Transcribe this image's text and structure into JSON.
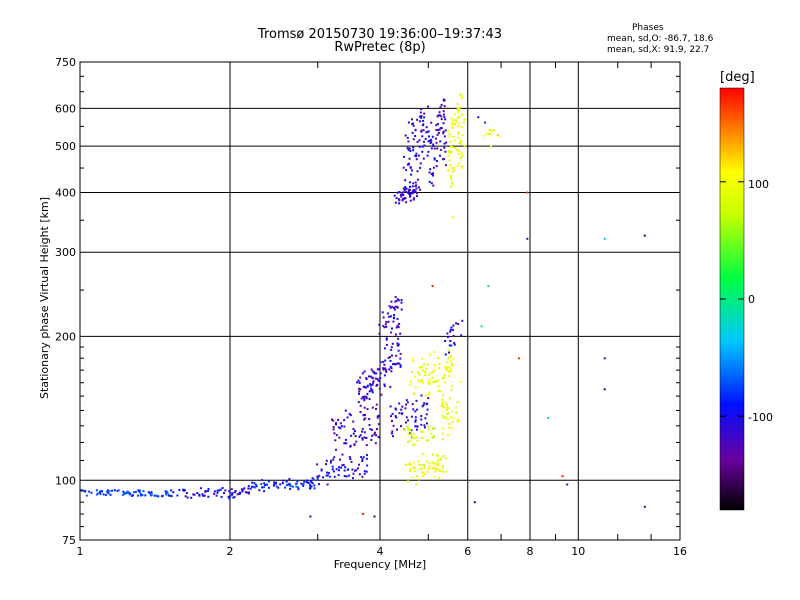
{
  "title_line1": "Tromsø 20150730 19:36:00–19:37:43",
  "title_line2": "RwPretec (8p)",
  "phases": {
    "heading": "Phases",
    "line_o": "mean, sd,O: -86.7, 18.6",
    "line_x": "mean, sd,X:  91.9, 22.7"
  },
  "colorbar": {
    "label": "[deg]",
    "ticks": [
      "100",
      "0",
      "-100"
    ],
    "range": [
      -180,
      180
    ]
  },
  "chart_data": {
    "type": "scatter",
    "xlabel": "Frequency [MHz]",
    "ylabel": "Stationary phase Virtual Height [km]",
    "x_scale": "log",
    "y_scale": "log",
    "xlim": [
      1,
      16
    ],
    "ylim": [
      75,
      750
    ],
    "x_ticks": [
      1,
      2,
      4,
      6,
      8,
      10,
      16
    ],
    "x_tick_labels": [
      "1",
      "2",
      "4",
      "6",
      "8",
      "10",
      "16"
    ],
    "x_minor_ticks": [
      3,
      5,
      7,
      9,
      12,
      14
    ],
    "y_ticks": [
      75,
      100,
      200,
      300,
      400,
      500,
      600,
      750
    ],
    "y_tick_labels": [
      "75",
      "100",
      "200",
      "300",
      "400",
      "500",
      "600",
      "750"
    ],
    "grid": true,
    "colormap": "rainbow-phase",
    "segments": [
      {
        "x1": 1.0,
        "y1": 94,
        "x2": 1.5,
        "y2": 94,
        "phase": -75,
        "n": 70,
        "spread": 1.5
      },
      {
        "x1": 1.5,
        "y1": 93,
        "x2": 2.2,
        "y2": 95,
        "phase": -100,
        "n": 70,
        "spread": 2
      },
      {
        "x1": 2.2,
        "y1": 96,
        "x2": 3.0,
        "y2": 100,
        "phase": -85,
        "n": 70,
        "spread": 2
      },
      {
        "x1": 3.0,
        "y1": 100,
        "x2": 3.8,
        "y2": 112,
        "phase": -100,
        "n": 60,
        "spread": 3
      },
      {
        "x1": 3.2,
        "y1": 112,
        "x2": 4.0,
        "y2": 145,
        "phase": -115,
        "n": 80,
        "spread": 4
      },
      {
        "x1": 3.6,
        "y1": 145,
        "x2": 4.0,
        "y2": 175,
        "phase": -110,
        "n": 60,
        "spread": 5
      },
      {
        "x1": 4.0,
        "y1": 150,
        "x2": 4.4,
        "y2": 255,
        "phase": -110,
        "n": 90,
        "spread": 8
      },
      {
        "x1": 4.2,
        "y1": 120,
        "x2": 5.0,
        "y2": 150,
        "phase": -110,
        "n": 60,
        "spread": 4
      },
      {
        "x1": 4.5,
        "y1": 100,
        "x2": 5.4,
        "y2": 115,
        "phase": 95,
        "n": 60,
        "spread": 4
      },
      {
        "x1": 4.4,
        "y1": 120,
        "x2": 5.2,
        "y2": 130,
        "phase": 80,
        "n": 30,
        "spread": 4
      },
      {
        "x1": 4.6,
        "y1": 150,
        "x2": 5.6,
        "y2": 185,
        "phase": 95,
        "n": 80,
        "spread": 8
      },
      {
        "x1": 5.3,
        "y1": 120,
        "x2": 5.8,
        "y2": 165,
        "phase": 95,
        "n": 40,
        "spread": 4
      },
      {
        "x1": 5.4,
        "y1": 185,
        "x2": 5.8,
        "y2": 215,
        "phase": -100,
        "n": 20,
        "spread": 4
      },
      {
        "x1": 4.3,
        "y1": 380,
        "x2": 4.8,
        "y2": 420,
        "phase": -110,
        "n": 60,
        "spread": 8
      },
      {
        "x1": 4.5,
        "y1": 420,
        "x2": 5.0,
        "y2": 620,
        "phase": -105,
        "n": 70,
        "spread": 15
      },
      {
        "x1": 5.0,
        "y1": 400,
        "x2": 5.4,
        "y2": 640,
        "phase": -110,
        "n": 70,
        "spread": 15
      },
      {
        "x1": 5.5,
        "y1": 400,
        "x2": 5.9,
        "y2": 660,
        "phase": 95,
        "n": 80,
        "spread": 15
      },
      {
        "x1": 6.5,
        "y1": 500,
        "x2": 6.9,
        "y2": 550,
        "phase": 100,
        "n": 10,
        "spread": 8
      }
    ],
    "points": [
      {
        "x": 7.6,
        "y": 180,
        "phase": 170
      },
      {
        "x": 7.9,
        "y": 400,
        "phase": 165
      },
      {
        "x": 7.9,
        "y": 320,
        "phase": -115
      },
      {
        "x": 8.7,
        "y": 135,
        "phase": -20
      },
      {
        "x": 9.3,
        "y": 102,
        "phase": 175
      },
      {
        "x": 9.5,
        "y": 98,
        "phase": -100
      },
      {
        "x": 11.3,
        "y": 320,
        "phase": -35
      },
      {
        "x": 11.3,
        "y": 180,
        "phase": -120
      },
      {
        "x": 11.3,
        "y": 155,
        "phase": -150
      },
      {
        "x": 13.6,
        "y": 325,
        "phase": -150
      },
      {
        "x": 13.6,
        "y": 88,
        "phase": -140
      },
      {
        "x": 6.3,
        "y": 575,
        "phase": -100
      },
      {
        "x": 6.5,
        "y": 560,
        "phase": -80
      },
      {
        "x": 6.6,
        "y": 255,
        "phase": -20
      },
      {
        "x": 6.4,
        "y": 210,
        "phase": -20
      },
      {
        "x": 6.2,
        "y": 90,
        "phase": -140
      },
      {
        "x": 3.7,
        "y": 85,
        "phase": 170
      },
      {
        "x": 3.9,
        "y": 84,
        "phase": -150
      },
      {
        "x": 2.9,
        "y": 84,
        "phase": -140
      },
      {
        "x": 5.6,
        "y": 355,
        "phase": 110
      },
      {
        "x": 5.1,
        "y": 255,
        "phase": 170
      }
    ]
  }
}
